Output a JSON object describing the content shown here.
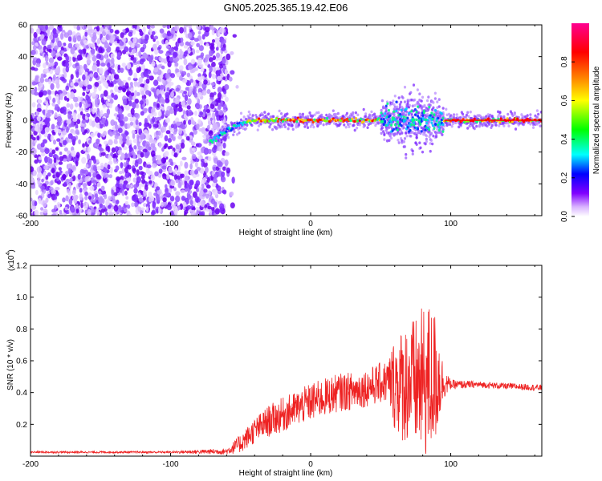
{
  "title": "GN05.2025.365.19.42.E06",
  "chart_data": [
    {
      "type": "heatmap",
      "xlabel": "Height of straight line (km)",
      "ylabel": "Frequency (Hz)",
      "xlim": [
        -200,
        165
      ],
      "ylim": [
        -60,
        60
      ],
      "xticks": [
        -200,
        -100,
        0,
        100
      ],
      "xtick_labels": [
        "-200",
        "-100",
        "0",
        "100"
      ],
      "yticks": [
        -60,
        -40,
        -20,
        0,
        20,
        40,
        60
      ],
      "ytick_labels": [
        "-60",
        "-40",
        "-20",
        "0",
        "20",
        "40",
        "60"
      ],
      "noise_region_x": [
        -200,
        -60
      ],
      "signal_start_x": -70,
      "signal_start_freq": -13,
      "signal_freq_steady": 0,
      "burst_region_x": [
        50,
        95
      ],
      "colorbar": {
        "label": "Normalized spectral amplitude",
        "range": [
          0,
          1
        ],
        "ticks": [
          0.0,
          0.2,
          0.4,
          0.6,
          0.8
        ],
        "tick_labels": [
          "0.0",
          "0.2",
          "0.4",
          "0.6",
          "0.8"
        ],
        "colors": [
          "#ffffff",
          "#c080ff",
          "#8000ff",
          "#0000ff",
          "#00ffff",
          "#00ff00",
          "#ffff00",
          "#ff8000",
          "#ff0000",
          "#ff00a0"
        ]
      }
    },
    {
      "type": "line",
      "xlabel": "Height of straight line (km)",
      "ylabel": "SNR (10 * v/v)",
      "multiplier_label": "(x10",
      "multiplier_exp": "4",
      "multiplier_close": ")",
      "xlim": [
        -200,
        165
      ],
      "ylim": [
        0,
        1.2
      ],
      "xticks": [
        -200,
        -100,
        0,
        100
      ],
      "xtick_labels": [
        "-200",
        "-100",
        "0",
        "100"
      ],
      "yticks": [
        0.2,
        0.4,
        0.6,
        0.8,
        1.0,
        1.2
      ],
      "ytick_labels": [
        "0.2",
        "0.4",
        "0.6",
        "0.8",
        "1.0",
        "1.2"
      ],
      "color": "#ee2222",
      "series": [
        {
          "name": "SNR",
          "x": [
            -200,
            -150,
            -100,
            -60,
            -50,
            -40,
            -30,
            -20,
            -10,
            0,
            10,
            20,
            30,
            40,
            50,
            55,
            60,
            65,
            70,
            75,
            80,
            85,
            90,
            95,
            100,
            120,
            140,
            165
          ],
          "base": [
            0.025,
            0.025,
            0.025,
            0.03,
            0.08,
            0.16,
            0.22,
            0.26,
            0.3,
            0.34,
            0.37,
            0.4,
            0.41,
            0.43,
            0.46,
            0.47,
            0.46,
            0.45,
            0.47,
            0.45,
            0.46,
            0.47,
            0.5,
            0.46,
            0.45,
            0.45,
            0.44,
            0.43
          ],
          "noise": [
            0.006,
            0.006,
            0.006,
            0.02,
            0.06,
            0.08,
            0.1,
            0.11,
            0.11,
            0.12,
            0.12,
            0.12,
            0.12,
            0.12,
            0.13,
            0.14,
            0.3,
            0.36,
            0.4,
            0.42,
            0.48,
            0.5,
            0.4,
            0.1,
            0.03,
            0.02,
            0.02,
            0.02
          ]
        }
      ]
    }
  ]
}
